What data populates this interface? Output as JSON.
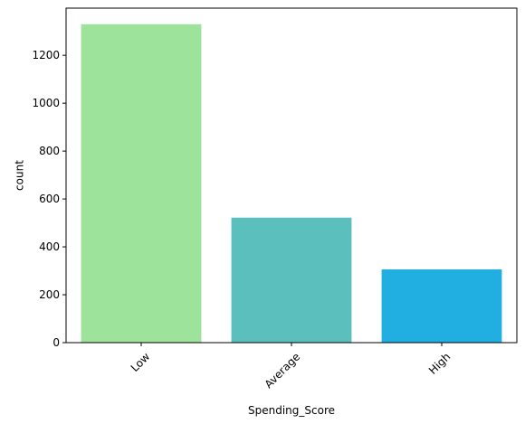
{
  "chart_data": {
    "type": "bar",
    "title": "",
    "xlabel": "Spending_Score",
    "ylabel": "count",
    "categories": [
      "Low",
      "Average",
      "High"
    ],
    "values": [
      1330,
      522,
      306
    ],
    "colors": [
      "#9de39b",
      "#5abfbd",
      "#21aee0"
    ],
    "ylim": [
      0,
      1397
    ],
    "yticks": [
      0,
      200,
      400,
      600,
      800,
      1000,
      1200
    ],
    "ytick_labels": [
      "0",
      "200",
      "400",
      "600",
      "800",
      "1000",
      "1200"
    ],
    "xtick_rotation_deg": 45,
    "grid": false,
    "legend": "none"
  }
}
